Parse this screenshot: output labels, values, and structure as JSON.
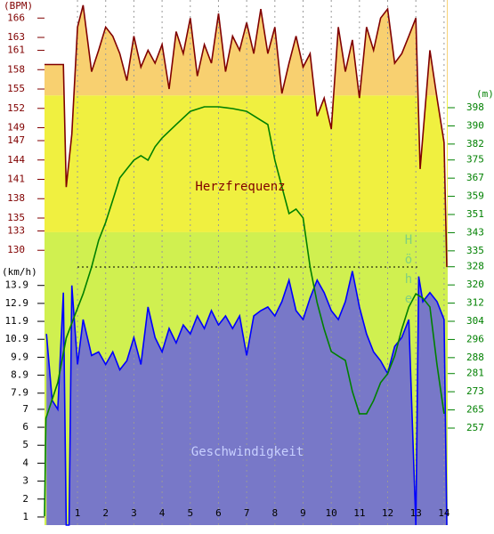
{
  "chart_data": {
    "type": "line",
    "ylabel": "(BPM)",
    "y3label": "(km/h)",
    "y2label": "(m)",
    "xlim": [
      -0.17,
      14.13
    ],
    "xticks": [
      1,
      2,
      3,
      4,
      5,
      6,
      7,
      8,
      9,
      10,
      11,
      12,
      13,
      14
    ],
    "ylim": [
      87.4,
      168.8
    ],
    "yticks": [
      166,
      163,
      161,
      158,
      155,
      152,
      149,
      147,
      144,
      141,
      138,
      135,
      133,
      130
    ],
    "y3lim": [
      0.55,
      29.8
    ],
    "y3ticks": [
      13.9,
      12.9,
      11.9,
      10.9,
      9.9,
      8.9,
      7.9,
      7,
      6,
      5,
      4,
      3,
      2,
      1
    ],
    "y2lim": [
      214.3,
      445.4
    ],
    "y2ticks": [
      398,
      390,
      382,
      375,
      367,
      359,
      351,
      343,
      335,
      328,
      320,
      312,
      304,
      296,
      288,
      281,
      273,
      265,
      257
    ],
    "grid": true,
    "zones": [
      {
        "from": 154,
        "to": 168.8,
        "color": "#f8d070"
      },
      {
        "from": 132.8,
        "to": 154,
        "color": "#f0f040"
      },
      {
        "from": 87.4,
        "to": 132.8,
        "color": "#d0f050"
      }
    ],
    "series": [
      {
        "name": "Herzfrequenz",
        "color": "#800000",
        "axis": "y",
        "x": [
          -0.17,
          0.5,
          0.6,
          0.8,
          1.0,
          1.2,
          1.5,
          1.75,
          2.0,
          2.25,
          2.5,
          2.75,
          3.0,
          3.25,
          3.5,
          3.75,
          4.0,
          4.25,
          4.5,
          4.75,
          5.0,
          5.25,
          5.5,
          5.75,
          6.0,
          6.25,
          6.5,
          6.75,
          7.0,
          7.25,
          7.5,
          7.75,
          8.0,
          8.25,
          8.5,
          8.75,
          9.0,
          9.25,
          9.5,
          9.75,
          10.0,
          10.25,
          10.5,
          10.75,
          11.0,
          11.25,
          11.5,
          11.75,
          12.0,
          12.25,
          12.5,
          12.75,
          13.0,
          13.15,
          13.5,
          13.75,
          14.0,
          14.1
        ],
        "values": [
          158.8,
          158.8,
          139.8,
          148,
          164.6,
          168,
          157.7,
          161,
          164.6,
          163.2,
          160.5,
          156.3,
          163.2,
          158.4,
          161,
          159,
          161.9,
          155,
          163.9,
          160.5,
          166,
          157,
          161.9,
          159,
          166.7,
          157.7,
          163.2,
          161,
          165.3,
          160.5,
          167.4,
          160.5,
          164.6,
          154.3,
          159,
          163.2,
          158.4,
          160.5,
          150.8,
          153.6,
          148.8,
          164.6,
          157.7,
          162.6,
          153.6,
          164.6,
          161,
          166,
          167.4,
          159,
          160.5,
          163.2,
          166,
          142.6,
          161,
          153.6,
          146.7,
          127.4
        ]
      },
      {
        "name": "Geschwindigkeit",
        "color": "#0000ff",
        "axis": "y3",
        "x": [
          -0.1,
          0.1,
          0.3,
          0.5,
          0.6,
          0.7,
          0.8,
          1.0,
          1.2,
          1.5,
          1.75,
          2.0,
          2.25,
          2.5,
          2.75,
          3.0,
          3.25,
          3.5,
          3.75,
          4.0,
          4.25,
          4.5,
          4.75,
          5.0,
          5.25,
          5.5,
          5.75,
          6.0,
          6.25,
          6.5,
          6.75,
          7.0,
          7.25,
          7.5,
          7.75,
          8.0,
          8.25,
          8.5,
          8.75,
          9.0,
          9.25,
          9.5,
          9.75,
          10.0,
          10.25,
          10.5,
          10.75,
          11.0,
          11.25,
          11.5,
          11.75,
          12.0,
          12.25,
          12.5,
          12.75,
          13.0,
          13.1,
          13.25,
          13.5,
          13.75,
          14.0,
          14.1
        ],
        "values": [
          11.2,
          7.5,
          7.0,
          13.5,
          0.55,
          0.55,
          13.9,
          9.5,
          12,
          10,
          10.2,
          9.5,
          10.2,
          9.2,
          9.7,
          11,
          9.5,
          12.7,
          11,
          10.2,
          11.5,
          10.7,
          11.7,
          11.2,
          12.2,
          11.5,
          12.5,
          11.7,
          12.2,
          11.5,
          12.2,
          10,
          12.2,
          12.5,
          12.7,
          12.2,
          13,
          14.2,
          12.5,
          12,
          13.2,
          14.2,
          13.5,
          12.5,
          12,
          13,
          14.7,
          12.7,
          11.2,
          10.2,
          9.7,
          9,
          10.5,
          11,
          12,
          0.55,
          14.4,
          13,
          13.5,
          13,
          12,
          0.55
        ]
      },
      {
        "name": "Höhe",
        "color": "#008000",
        "axis": "y2",
        "x": [
          -0.17,
          -0.12,
          0.3,
          0.6,
          0.9,
          1.2,
          1.5,
          1.75,
          2.0,
          2.25,
          2.5,
          2.75,
          3.0,
          3.25,
          3.5,
          3.75,
          4.0,
          4.5,
          5.0,
          5.5,
          6.0,
          6.5,
          7.0,
          7.5,
          7.75,
          8.0,
          8.25,
          8.5,
          8.75,
          9.0,
          9.25,
          9.5,
          9.75,
          10.0,
          10.25,
          10.5,
          10.75,
          11.0,
          11.25,
          11.5,
          11.75,
          12.0,
          12.25,
          12.5,
          12.75,
          13.0,
          13.25,
          13.5,
          13.75,
          14.0
        ],
        "values": [
          218.2,
          261.3,
          277,
          296.6,
          306.5,
          316.1,
          327.9,
          339.6,
          347.5,
          357.3,
          367.1,
          371,
          374.9,
          376.9,
          374.9,
          380.8,
          384.7,
          390.6,
          396.4,
          398.4,
          398.4,
          397.6,
          396.4,
          392.5,
          390.6,
          374.9,
          363.2,
          351.4,
          353.4,
          349.5,
          327.9,
          312.2,
          300.5,
          290.7,
          288.7,
          286.8,
          273.1,
          263.3,
          263.3,
          269.1,
          277,
          280.9,
          288.7,
          300.5,
          310.3,
          316.1,
          314.2,
          310.3,
          284.8,
          263.3
        ]
      }
    ]
  }
}
